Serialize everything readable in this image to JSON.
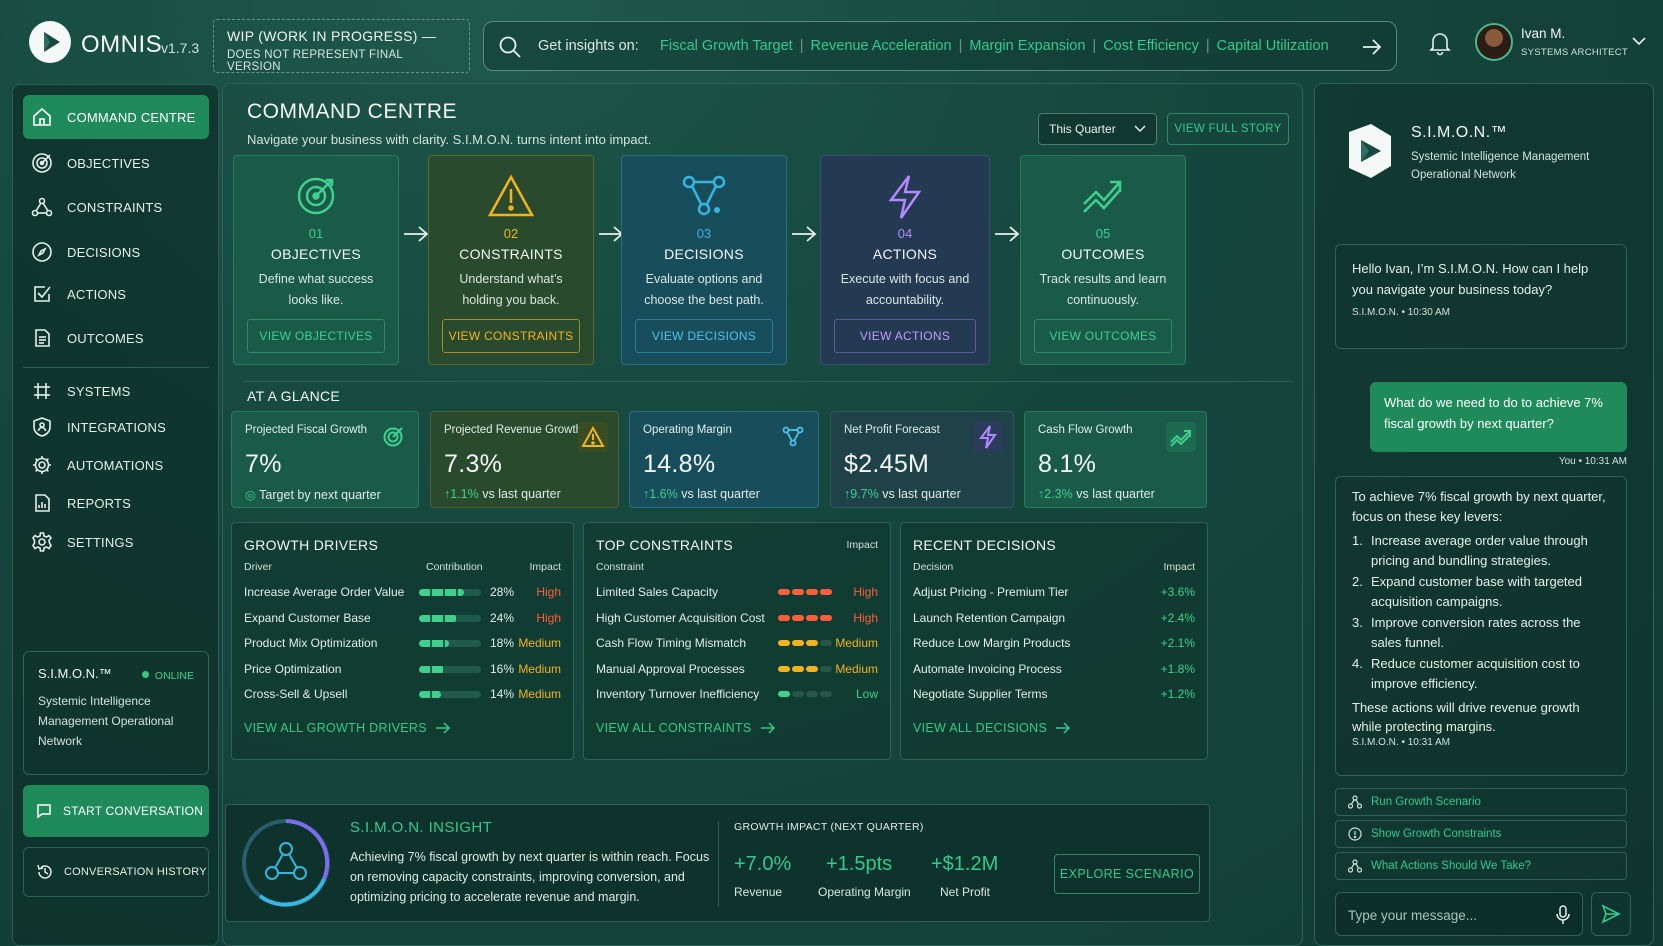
{
  "app": {
    "name": "OMNIS",
    "version": "v1.7.3"
  },
  "wip": {
    "line1": "WIP (WORK IN PROGRESS) —",
    "line2": "DOES NOT REPRESENT FINAL VERSION"
  },
  "search": {
    "lead": "Get insights on:",
    "links": [
      "Fiscal Growth Target",
      "Revenue Acceleration",
      "Margin Expansion",
      "Cost Efficiency",
      "Capital Utilization"
    ]
  },
  "user": {
    "name": "Ivan M.",
    "role": "SYSTEMS ARCHITECT"
  },
  "sidebar": {
    "items": [
      {
        "label": "COMMAND CENTRE",
        "icon": "home-icon"
      },
      {
        "label": "OBJECTIVES",
        "icon": "target-icon"
      },
      {
        "label": "CONSTRAINTS",
        "icon": "network-icon"
      },
      {
        "label": "DECISIONS",
        "icon": "compass-icon"
      },
      {
        "label": "ACTIONS",
        "icon": "check-square-icon"
      },
      {
        "label": "OUTCOMES",
        "icon": "document-icon"
      },
      {
        "label": "SYSTEMS",
        "icon": "grid-icon"
      },
      {
        "label": "INTEGRATIONS",
        "icon": "shield-icon"
      },
      {
        "label": "AUTOMATIONS",
        "icon": "gear-icon"
      },
      {
        "label": "REPORTS",
        "icon": "report-icon"
      },
      {
        "label": "SETTINGS",
        "icon": "settings-icon"
      }
    ],
    "simon": {
      "title": "S.I.M.O.N.™",
      "status": "ONLINE",
      "desc": "Systemic Intelligence Management Operational Network"
    },
    "start_label": "START CONVERSATION",
    "history_label": "CONVERSATION HISTORY"
  },
  "main": {
    "title": "COMMAND CENTRE",
    "subtitle": "Navigate your business with clarity. S.I.M.O.N. turns intent into impact.",
    "period": "This Quarter",
    "story_label": "VIEW FULL STORY",
    "steps": [
      {
        "num": "01",
        "title": "OBJECTIVES",
        "desc": "Define what success looks like.",
        "button": "VIEW OBJECTIVES",
        "color": "#3fd08e"
      },
      {
        "num": "02",
        "title": "CONSTRAINTS",
        "desc": "Understand what’s holding you back.",
        "button": "VIEW CONSTRAINTS",
        "color": "#f2b320"
      },
      {
        "num": "03",
        "title": "DECISIONS",
        "desc": "Evaluate options and choose the best path.",
        "button": "VIEW DECISIONS",
        "color": "#36b6e0"
      },
      {
        "num": "04",
        "title": "ACTIONS",
        "desc": "Execute with focus and accountability.",
        "button": "VIEW ACTIONS",
        "color": "#b489ff"
      },
      {
        "num": "05",
        "title": "OUTCOMES",
        "desc": "Track results and learn continuously.",
        "button": "VIEW OUTCOMES",
        "color": "#3fd08e"
      }
    ],
    "glance_label": "AT A GLANCE",
    "kpis": [
      {
        "label": "Projected Fiscal Growth",
        "value": "7%",
        "delta": "",
        "note": "Target by next quarter",
        "icon": "target-icon"
      },
      {
        "label": "Projected Revenue Growth",
        "value": "7.3%",
        "delta": "1.1%",
        "note": "vs last quarter",
        "icon": "warning-icon"
      },
      {
        "label": "Operating Margin",
        "value": "14.8%",
        "delta": "1.6%",
        "note": "vs last quarter",
        "icon": "network-icon"
      },
      {
        "label": "Net Profit Forecast",
        "value": "$2.45M",
        "delta": "9.7%",
        "note": "vs last quarter",
        "icon": "lightning-icon"
      },
      {
        "label": "Cash Flow Growth",
        "value": "8.1%",
        "delta": "2.3%",
        "note": "vs last quarter",
        "icon": "trend-up-icon"
      }
    ],
    "growth": {
      "title": "GROWTH DRIVERS",
      "col_driver": "Driver",
      "col_contrib": "Contribution",
      "col_impact": "Impact",
      "rows": [
        {
          "name": "Increase Average Order Value",
          "pct": "28%",
          "impact": "High",
          "level": 0.72
        },
        {
          "name": "Expand Customer Base",
          "pct": "24%",
          "impact": "High",
          "level": 0.62
        },
        {
          "name": "Product Mix Optimization",
          "pct": "18%",
          "impact": "Medium",
          "level": 0.48
        },
        {
          "name": "Price Optimization",
          "pct": "16%",
          "impact": "Medium",
          "level": 0.42
        },
        {
          "name": "Cross-Sell & Upsell",
          "pct": "14%",
          "impact": "Medium",
          "level": 0.36
        }
      ],
      "link": "VIEW ALL GROWTH DRIVERS"
    },
    "constraints": {
      "title": "TOP CONSTRAINTS",
      "col_name": "Constraint",
      "col_impact": "Impact",
      "rows": [
        {
          "name": "Limited Sales Capacity",
          "impact": "High",
          "segments": 4
        },
        {
          "name": "High Customer Acquisition Cost",
          "impact": "High",
          "segments": 4
        },
        {
          "name": "Cash Flow Timing Mismatch",
          "impact": "Medium",
          "segments": 3
        },
        {
          "name": "Manual Approval Processes",
          "impact": "Medium",
          "segments": 3
        },
        {
          "name": "Inventory Turnover Inefficiency",
          "impact": "Low",
          "segments": 1
        }
      ],
      "link": "VIEW ALL CONSTRAINTS"
    },
    "decisions": {
      "title": "RECENT DECISIONS",
      "col_name": "Decision",
      "col_impact": "Impact",
      "rows": [
        {
          "name": "Adjust Pricing - Premium Tier",
          "impact": "+3.6%"
        },
        {
          "name": "Launch Retention Campaign",
          "impact": "+2.4%"
        },
        {
          "name": "Reduce Low Margin Products",
          "impact": "+2.1%"
        },
        {
          "name": "Automate Invoicing Process",
          "impact": "+1.8%"
        },
        {
          "name": "Negotiate Supplier Terms",
          "impact": "+1.2%"
        }
      ],
      "link": "VIEW ALL DECISIONS"
    },
    "insight": {
      "title": "S.I.M.O.N. INSIGHT",
      "text": "Achieving 7% fiscal growth by next quarter is within reach. Focus on removing capacity constraints, improving conversion, and optimizing pricing to accelerate revenue and margin.",
      "impact_heading": "GROWTH IMPACT (NEXT QUARTER)",
      "impacts": [
        {
          "value": "+7.0%",
          "label": "Revenue"
        },
        {
          "value": "+1.5pts",
          "label": "Operating Margin"
        },
        {
          "value": "+$1.2M",
          "label": "Net Profit"
        }
      ],
      "button": "EXPLORE SCENARIO"
    }
  },
  "chat": {
    "name": "S.I.M.O.N.™",
    "desc1": "Systemic Intelligence Management",
    "desc2": "Operational Network",
    "greeting": "Hello Ivan, I’m S.I.M.O.N. How can I help you navigate your business today?",
    "greeting_ts": "S.I.M.O.N. • 10:30 AM",
    "user_msg": "What do we need to do to achieve 7% fiscal growth by next quarter?",
    "user_ts": "You • 10:31 AM",
    "answer_intro": "To achieve 7% fiscal growth by next quarter, focus on these key levers:",
    "answer_items": [
      "Increase average order value through pricing and bundling strategies.",
      "Expand customer base with targeted acquisition campaigns.",
      "Improve conversion rates across the sales funnel.",
      "Reduce customer acquisition cost to improve efficiency."
    ],
    "answer_outro": "These actions will drive revenue growth while protecting margins.",
    "answer_ts": "S.I.M.O.N. • 10:31 AM",
    "chips": [
      "Run Growth Scenario",
      "Show Growth Constraints",
      "What Actions Should We Take?"
    ],
    "placeholder": "Type your message..."
  }
}
